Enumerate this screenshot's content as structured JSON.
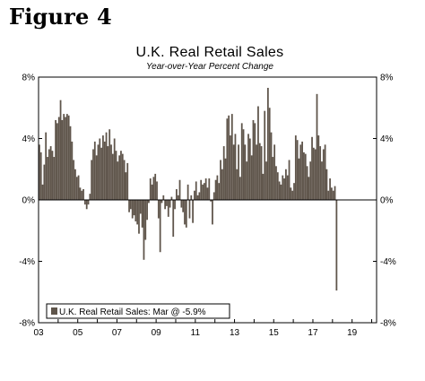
{
  "figure_label": "Figure 4",
  "chart_data": {
    "type": "bar",
    "title": "U.K. Real Retail Sales",
    "subtitle": "Year-over-Year Percent Change",
    "xlabel": "",
    "ylabel": "",
    "ylim": [
      -8,
      8
    ],
    "y_ticks": [
      "8%",
      "4%",
      "0%",
      "-4%",
      "-8%"
    ],
    "y_tick_values": [
      8,
      4,
      0,
      -4,
      -8
    ],
    "x_ticks": [
      "03",
      "05",
      "07",
      "09",
      "11",
      "13",
      "15",
      "17",
      "19"
    ],
    "x_tick_values": [
      2003,
      2005,
      2007,
      2009,
      2011,
      2013,
      2015,
      2017,
      2019
    ],
    "x_range": [
      2003.0,
      2020.25
    ],
    "start": "2003-01",
    "frequency": "monthly",
    "bar_color": "#5f554b",
    "grid": false,
    "legend_position": "bottom-left",
    "series": [
      {
        "name": "U.K. Real Retail Sales: Mar @ -5.9%",
        "values": [
          3.6,
          3.1,
          1.0,
          2.3,
          4.4,
          2.8,
          3.3,
          3.5,
          3.2,
          2.8,
          5.2,
          5.0,
          5.4,
          6.5,
          5.2,
          5.6,
          5.4,
          5.6,
          5.5,
          4.8,
          3.8,
          2.6,
          2.0,
          1.5,
          1.6,
          0.8,
          0.6,
          0.7,
          -0.3,
          -0.6,
          -0.3,
          0.4,
          2.6,
          3.3,
          3.8,
          2.9,
          3.6,
          4.0,
          3.4,
          4.2,
          3.8,
          4.4,
          3.5,
          4.6,
          3.6,
          3.0,
          4.0,
          3.2,
          2.5,
          2.9,
          3.2,
          3.0,
          2.6,
          1.8,
          2.4,
          -0.8,
          -0.6,
          -1.2,
          -1.0,
          -1.4,
          -1.6,
          -2.2,
          -0.9,
          -1.8,
          -3.9,
          -2.6,
          -1.3,
          -0.2,
          1.4,
          1.0,
          1.5,
          1.7,
          1.2,
          -1.2,
          -3.4,
          -0.2,
          0.3,
          -0.6,
          -0.4,
          -1.1,
          -0.5,
          0.2,
          -2.4,
          -0.6,
          0.7,
          0.3,
          1.3,
          -0.5,
          -0.8,
          -1.6,
          -1.8,
          1.0,
          -1.2,
          0.3,
          -1.5,
          0.6,
          1.2,
          0.3,
          0.5,
          1.3,
          1.0,
          1.1,
          1.4,
          0.8,
          1.4,
          -0.1,
          -1.6,
          0.5,
          1.3,
          1.6,
          1.1,
          2.6,
          2.0,
          3.5,
          2.7,
          5.3,
          5.5,
          4.2,
          5.6,
          3.6,
          4.3,
          2.0,
          3.6,
          1.5,
          5.0,
          4.6,
          3.6,
          2.5,
          4.3,
          4.0,
          2.9,
          5.2,
          5.0,
          3.6,
          6.1,
          3.7,
          3.5,
          1.7,
          5.8,
          2.5,
          7.3,
          6.0,
          4.4,
          2.8,
          3.6,
          2.2,
          1.8,
          1.2,
          1.0,
          1.6,
          1.4,
          2.0,
          1.6,
          2.6,
          0.8,
          0.6,
          1.1,
          4.2,
          3.9,
          2.7,
          3.6,
          3.8,
          3.1,
          3.0,
          2.2,
          1.5,
          2.5,
          4.1,
          3.4,
          3.3,
          6.9,
          4.2,
          3.5,
          2.5,
          3.3,
          3.6,
          2.0,
          0.6,
          1.4,
          0.8,
          0.6,
          0.9,
          -5.9
        ]
      }
    ]
  }
}
